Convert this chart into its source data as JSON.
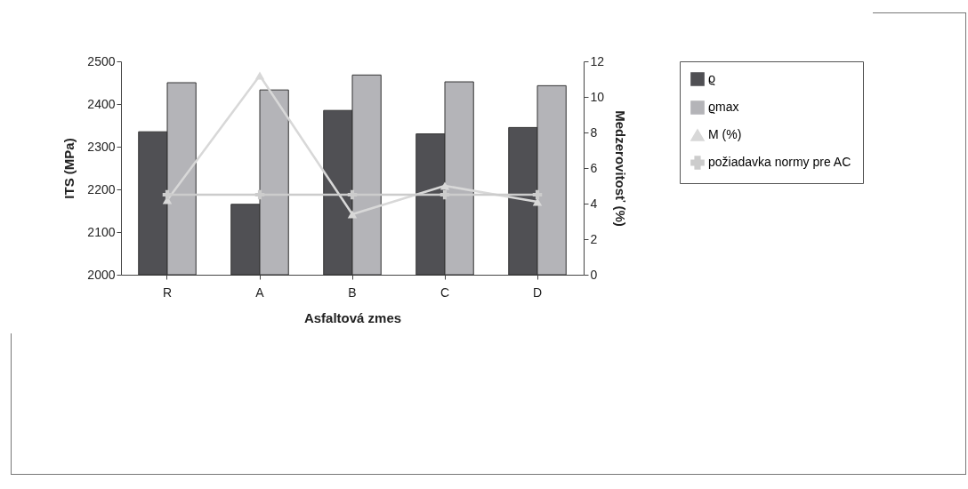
{
  "chart_data": {
    "type": "bar",
    "xlabel": "Asfaltová zmes",
    "ylabel": "ITS (MPa)",
    "y2label": "Medzerovitosť (%)",
    "categories": [
      "R",
      "A",
      "B",
      "C",
      "D"
    ],
    "series": [
      {
        "name": "ϱ",
        "color": "#505054",
        "values": [
          2335,
          2165,
          2385,
          2330,
          2345
        ]
      },
      {
        "name": "ϱmax",
        "color": "#b4b4b8",
        "values": [
          2450,
          2433,
          2468,
          2452,
          2443
        ]
      },
      {
        "name": "M (%)",
        "type": "line",
        "axis": "y2",
        "marker": "triangle",
        "color": "#d8d8d8",
        "values": [
          4.2,
          11.2,
          3.4,
          5.0,
          4.1
        ]
      },
      {
        "name": "požiadavka normy pre AC",
        "type": "line",
        "axis": "y2",
        "marker": "cross",
        "color": "#cccccc",
        "values": [
          4.5,
          4.5,
          4.5,
          4.5,
          4.5
        ]
      }
    ],
    "ylim": [
      2000,
      2500
    ],
    "yticks": [
      2000,
      2100,
      2200,
      2300,
      2400,
      2500
    ],
    "y2lim": [
      0,
      12
    ],
    "y2ticks": [
      0,
      2,
      4,
      6,
      8,
      10,
      12
    ],
    "grid": false,
    "legend": "right"
  }
}
